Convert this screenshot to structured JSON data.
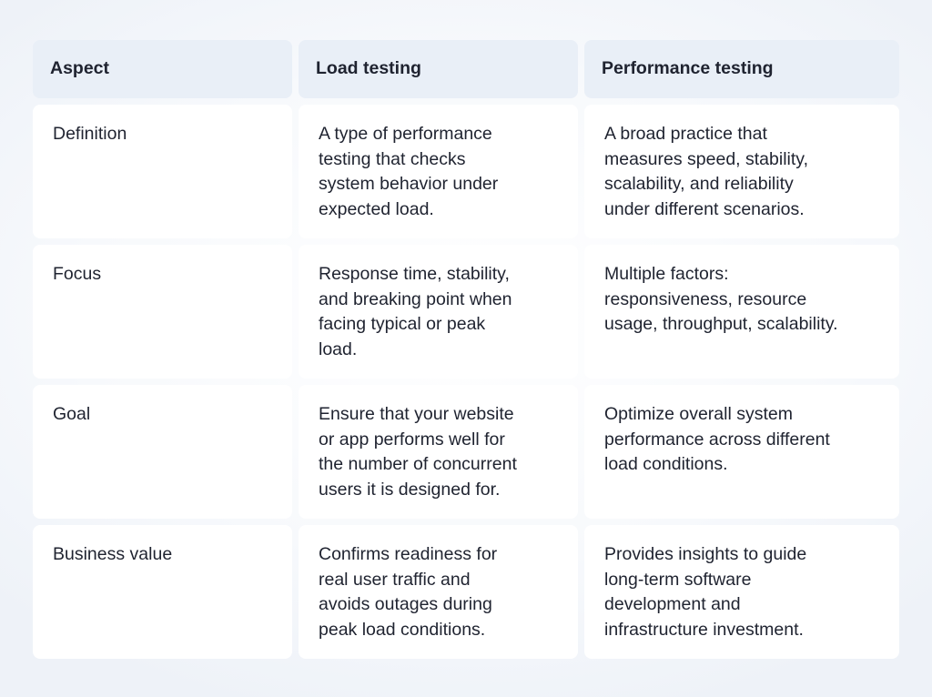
{
  "table": {
    "headers": [
      "Aspect",
      "Load testing",
      "Performance testing"
    ],
    "rows": [
      {
        "aspect": "Definition",
        "load": "A type of performance\ntesting that checks\nsystem behavior under\nexpected load.",
        "performance": "A broad practice that\nmeasures speed, stability,\nscalability, and reliability\nunder different scenarios."
      },
      {
        "aspect": "Focus",
        "load": "Response time, stability,\nand breaking point when\nfacing typical or peak\nload.",
        "performance": "Multiple factors:\nresponsiveness, resource\nusage, throughput, scalability."
      },
      {
        "aspect": "Goal",
        "load": "Ensure that your website\nor app performs well for\nthe number of concurrent\nusers it is designed for.",
        "performance": "Optimize overall system\nperformance across different\nload conditions."
      },
      {
        "aspect": "Business value",
        "load": "Confirms readiness for\nreal user traffic and\navoids outages during\npeak load conditions.",
        "performance": "Provides insights to guide\nlong-term software\ndevelopment and\ninfrastructure investment."
      }
    ]
  }
}
